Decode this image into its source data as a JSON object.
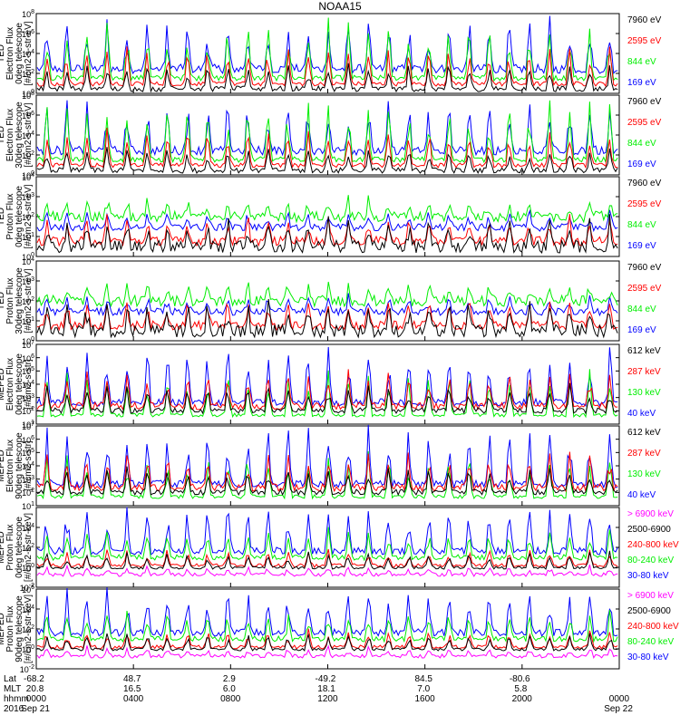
{
  "title": "NOAA15",
  "colors": {
    "black": "#000000",
    "red": "#ff0000",
    "green": "#00ee00",
    "blue": "#0000ff",
    "magenta": "#ff00ff"
  },
  "chart_data": [
    {
      "type": "line",
      "ylabel": [
        "TED",
        "Electron Flux",
        "0deg telescope",
        "[#/cm2-s-str-eV]"
      ],
      "ylog": true,
      "ylim_exp": [
        0,
        8
      ],
      "ticks_exp": [
        0,
        2,
        4,
        6,
        8
      ],
      "series": [
        {
          "name": "7960 eV",
          "color": "black"
        },
        {
          "name": "2595 eV",
          "color": "red"
        },
        {
          "name": "844 eV",
          "color": "green"
        },
        {
          "name": "169 eV",
          "color": "blue"
        }
      ]
    },
    {
      "type": "line",
      "ylabel": [
        "TED",
        "Electron Flux",
        "30deg telescope",
        "[#/cm2-s-str-eV]"
      ],
      "ylog": true,
      "ylim_exp": [
        0,
        8
      ],
      "ticks_exp": [
        0,
        2,
        4,
        6,
        8
      ],
      "series": [
        {
          "name": "7960 eV",
          "color": "black"
        },
        {
          "name": "2595 eV",
          "color": "red"
        },
        {
          "name": "844 eV",
          "color": "green"
        },
        {
          "name": "169 eV",
          "color": "blue"
        }
      ]
    },
    {
      "type": "line",
      "ylabel": [
        "TED",
        "Proton Flux",
        "0deg telescope",
        "[#/cm2-s-str-eV]"
      ],
      "ylog": true,
      "ylim_exp": [
        0,
        4
      ],
      "ticks_exp": [
        0,
        1,
        2,
        3,
        4
      ],
      "series": [
        {
          "name": "7960 eV",
          "color": "black"
        },
        {
          "name": "2595 eV",
          "color": "red"
        },
        {
          "name": "844 eV",
          "color": "green"
        },
        {
          "name": "169 eV",
          "color": "blue"
        }
      ]
    },
    {
      "type": "line",
      "ylabel": [
        "TED",
        "Proton Flux",
        "30deg telescope",
        "[#/cm2-s-str-eV]"
      ],
      "ylog": true,
      "ylim_exp": [
        0,
        4
      ],
      "ticks_exp": [
        0,
        1,
        2,
        3,
        4
      ],
      "series": [
        {
          "name": "7960 eV",
          "color": "black"
        },
        {
          "name": "2595 eV",
          "color": "red"
        },
        {
          "name": "844 eV",
          "color": "green"
        },
        {
          "name": "169 eV",
          "color": "blue"
        }
      ]
    },
    {
      "type": "line",
      "ylabel": [
        "MEPED",
        "Electron Flux",
        "0deg telescope",
        "[#/cm2-s-str]"
      ],
      "ylog": true,
      "ylim_exp": [
        1,
        7
      ],
      "ticks_exp": [
        1,
        2,
        3,
        4,
        5,
        6,
        7
      ],
      "series": [
        {
          "name": "612 keV",
          "color": "black"
        },
        {
          "name": "287 keV",
          "color": "red"
        },
        {
          "name": "130 keV",
          "color": "green"
        },
        {
          "name": "40 keV",
          "color": "blue"
        }
      ]
    },
    {
      "type": "line",
      "ylabel": [
        "MEPED",
        "Electron Flux",
        "90deg telescope",
        "[#/cm2-s-str]"
      ],
      "ylog": true,
      "ylim_exp": [
        1,
        7
      ],
      "ticks_exp": [
        1,
        2,
        3,
        4,
        5,
        6,
        7
      ],
      "series": [
        {
          "name": "612 keV",
          "color": "black"
        },
        {
          "name": "287 keV",
          "color": "red"
        },
        {
          "name": "130 keV",
          "color": "green"
        },
        {
          "name": "40 keV",
          "color": "blue"
        }
      ]
    },
    {
      "type": "line",
      "ylabel": [
        "MEPED",
        "Proton Flux",
        "0deg telescope",
        "[#/cm2-s-str-keV]"
      ],
      "ylog": true,
      "ylim_exp": [
        -2,
        6
      ],
      "ticks_exp": [
        -2,
        0,
        2,
        4
      ],
      "series": [
        {
          "name": "> 6900 keV",
          "color": "magenta"
        },
        {
          "name": "2500-6900",
          "color": "black"
        },
        {
          "name": "240-800 keV",
          "color": "red"
        },
        {
          "name": "80-240 keV",
          "color": "green"
        },
        {
          "name": "30-80 keV",
          "color": "blue"
        }
      ]
    },
    {
      "type": "line",
      "ylabel": [
        "MEPED",
        "Proton Flux",
        "90deg telescope",
        "[#/cm2-s-str-keV]"
      ],
      "ylog": true,
      "ylim_exp": [
        -2,
        6
      ],
      "ticks_exp": [
        -2,
        0,
        2,
        4,
        6
      ],
      "series": [
        {
          "name": "> 6900 keV",
          "color": "magenta"
        },
        {
          "name": "2500-6900",
          "color": "black"
        },
        {
          "name": "240-800 keV",
          "color": "red"
        },
        {
          "name": "80-240 keV",
          "color": "green"
        },
        {
          "name": "30-80 keV",
          "color": "blue"
        }
      ]
    }
  ],
  "x_axis": {
    "row_labels": [
      "Lat",
      "MLT",
      "hhmm",
      "2016"
    ],
    "ticks": [
      {
        "lat": "-68.2",
        "mlt": "20.8",
        "hhmm": "0000",
        "date": "Sep 21"
      },
      {
        "lat": "48.7",
        "mlt": "16.5",
        "hhmm": "0400",
        "date": ""
      },
      {
        "lat": "2.9",
        "mlt": "6.0",
        "hhmm": "0800",
        "date": ""
      },
      {
        "lat": "-49.2",
        "mlt": "18.1",
        "hhmm": "1200",
        "date": ""
      },
      {
        "lat": "84.5",
        "mlt": "7.0",
        "hhmm": "1600",
        "date": ""
      },
      {
        "lat": "-80.6",
        "mlt": "5.8",
        "hhmm": "2000",
        "date": ""
      },
      {
        "lat": "",
        "mlt": "",
        "hhmm": "0000",
        "date": "Sep 22"
      }
    ]
  }
}
